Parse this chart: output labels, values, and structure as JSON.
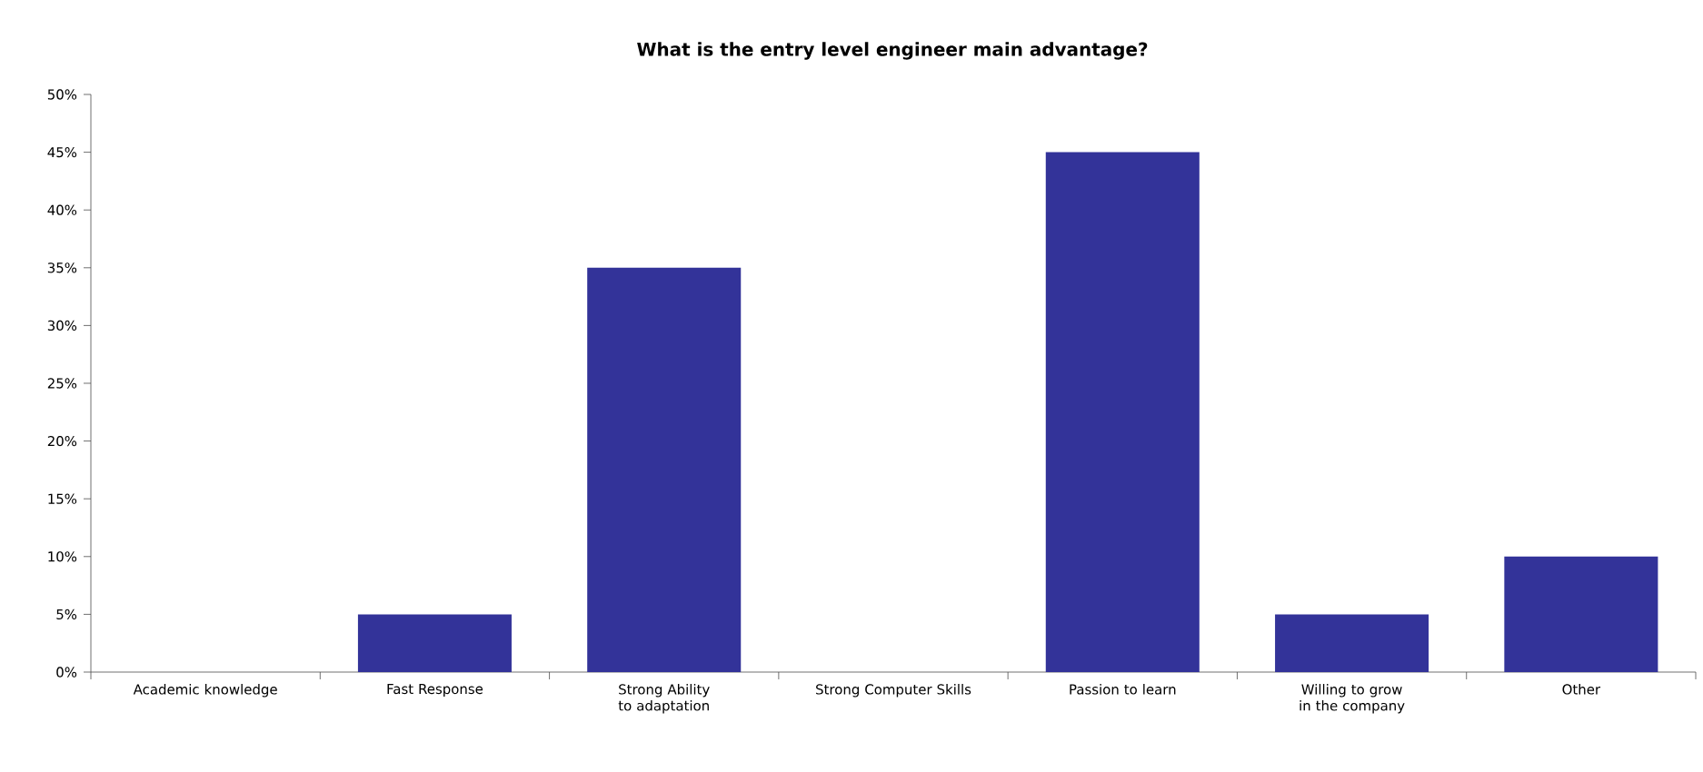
{
  "chart_data": {
    "type": "bar",
    "title": "What is the entry level engineer main advantage?",
    "categories": [
      "Academic knowledge",
      "Fast Response",
      "Strong Ability to adaptation",
      "Strong Computer Skills",
      "Passion to learn",
      "Willing  to grow in the company",
      "Other"
    ],
    "values": [
      0,
      5,
      35,
      0,
      45,
      5,
      10
    ],
    "color": "#333399",
    "ylim": [
      0,
      50
    ],
    "yticks": [
      {
        "value": 0,
        "label": "0%"
      },
      {
        "value": 5,
        "label": "5%"
      },
      {
        "value": 10,
        "label": "10%"
      },
      {
        "value": 15,
        "label": "15%"
      },
      {
        "value": 20,
        "label": "20%"
      },
      {
        "value": 25,
        "label": "25%"
      },
      {
        "value": 30,
        "label": "30%"
      },
      {
        "value": 35,
        "label": "35%"
      },
      {
        "value": 40,
        "label": "40%"
      },
      {
        "value": 45,
        "label": "45%"
      },
      {
        "value": 50,
        "label": "50%"
      }
    ]
  }
}
